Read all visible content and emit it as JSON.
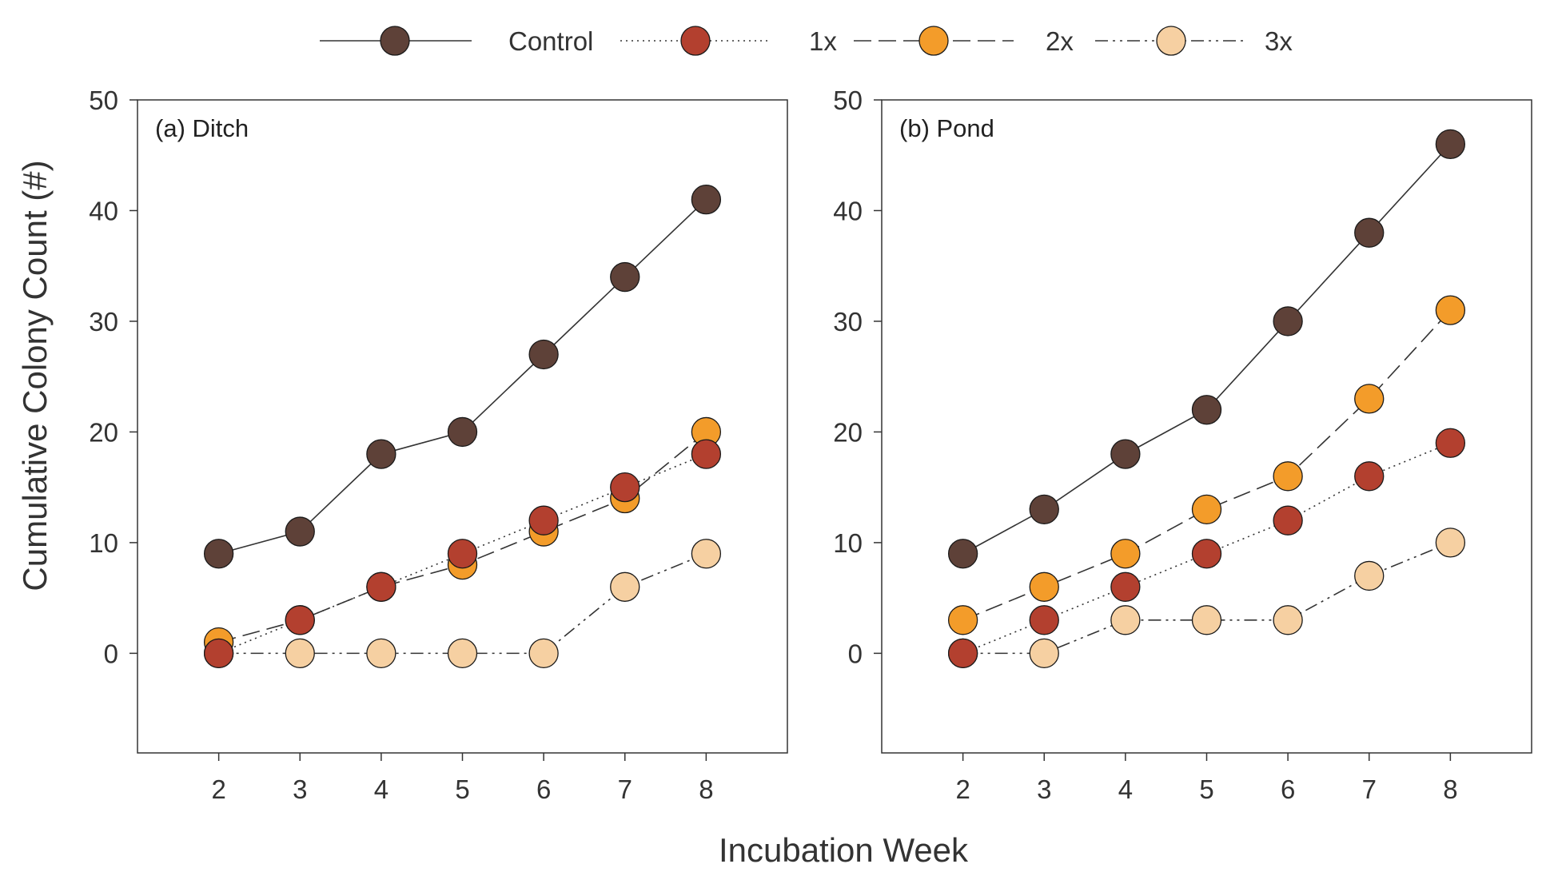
{
  "colors": {
    "control": "#5e4138",
    "1x": "#b3402f",
    "2x": "#f39c2a",
    "3x": "#f6d0a2",
    "marker_edge": "#1a1a1a",
    "line": "#333333"
  },
  "legend": [
    {
      "key": "control",
      "label": "Control"
    },
    {
      "key": "1x",
      "label": "1x"
    },
    {
      "key": "2x",
      "label": "2x"
    },
    {
      "key": "3x",
      "label": "3x"
    }
  ],
  "chart_data": [
    {
      "type": "line",
      "title": "(a) Ditch",
      "xlabel": "Incubation Week",
      "ylabel": "Cumulative Colony Count (#)",
      "x": [
        2,
        3,
        4,
        5,
        6,
        7,
        8
      ],
      "xlim": [
        1,
        9
      ],
      "ylim": [
        -9,
        50
      ],
      "yticks": [
        0,
        10,
        20,
        30,
        40,
        50
      ],
      "series": [
        {
          "key": "control",
          "name": "Control",
          "values": [
            9,
            11,
            18,
            20,
            27,
            34,
            41
          ]
        },
        {
          "key": "1x",
          "name": "1x",
          "values": [
            0,
            3,
            6,
            9,
            12,
            15,
            18
          ]
        },
        {
          "key": "2x",
          "name": "2x",
          "values": [
            1,
            3,
            6,
            8,
            11,
            14,
            20
          ]
        },
        {
          "key": "3x",
          "name": "3x",
          "values": [
            0,
            0,
            0,
            0,
            0,
            6,
            9
          ]
        }
      ]
    },
    {
      "type": "line",
      "title": "(b) Pond",
      "xlabel": "Incubation Week",
      "ylabel": "Cumulative Colony Count (#)",
      "x": [
        2,
        3,
        4,
        5,
        6,
        7,
        8
      ],
      "xlim": [
        1,
        9
      ],
      "ylim": [
        -9,
        50
      ],
      "yticks": [
        0,
        10,
        20,
        30,
        40,
        50
      ],
      "series": [
        {
          "key": "control",
          "name": "Control",
          "values": [
            9,
            13,
            18,
            22,
            30,
            38,
            46
          ]
        },
        {
          "key": "1x",
          "name": "1x",
          "values": [
            0,
            3,
            6,
            9,
            12,
            16,
            19
          ]
        },
        {
          "key": "2x",
          "name": "2x",
          "values": [
            3,
            6,
            9,
            13,
            16,
            23,
            31
          ]
        },
        {
          "key": "3x",
          "name": "3x",
          "values": [
            0,
            0,
            3,
            3,
            3,
            7,
            10
          ]
        }
      ]
    }
  ],
  "shared": {
    "ylabel": "Cumulative Colony Count (#)",
    "xlabel": "Incubation Week"
  }
}
